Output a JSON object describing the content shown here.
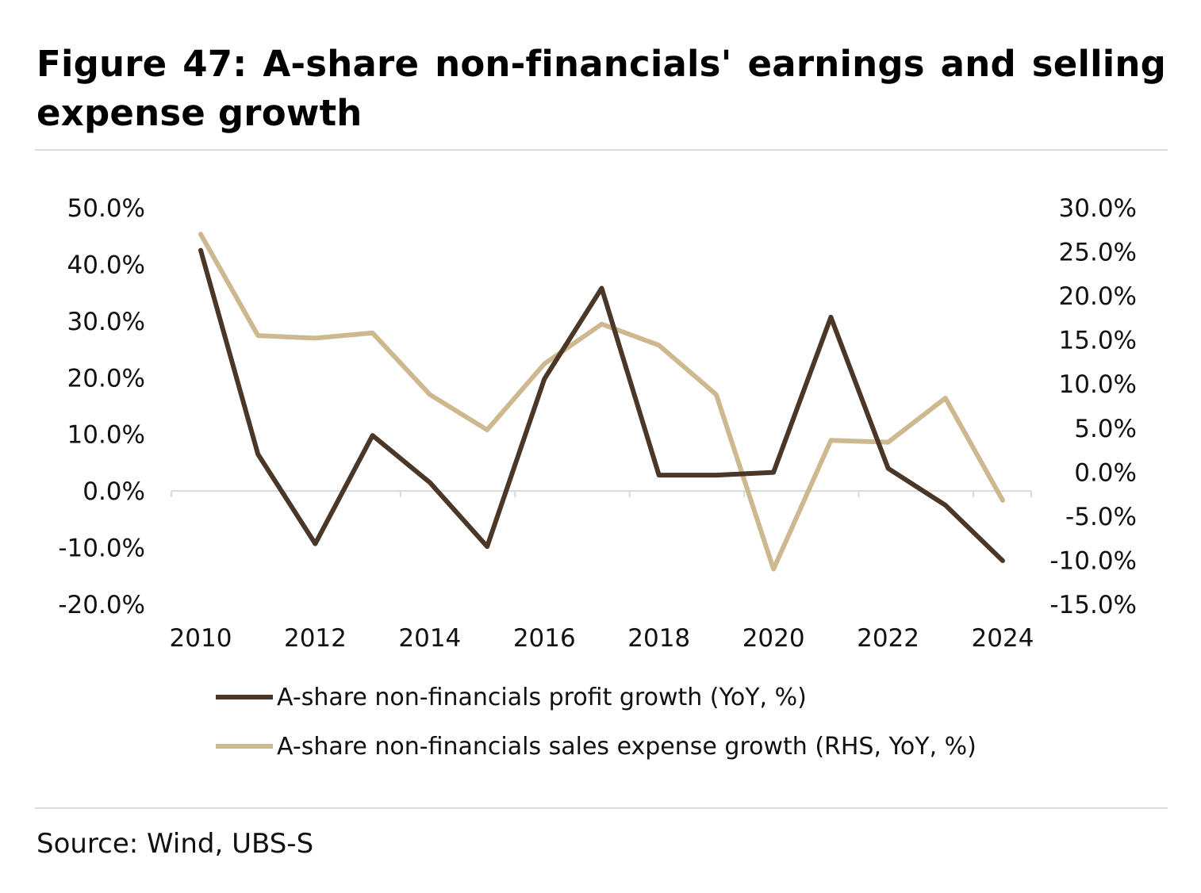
{
  "header": {
    "title": "Figure 47: A-share non-financials' earnings and selling expense growth"
  },
  "footer": {
    "source": "Source: Wind, UBS-S"
  },
  "colors": {
    "profit": "#4a3728",
    "expense": "#cdb88f",
    "axis": "#d9d9d9"
  },
  "chart_data": {
    "type": "line",
    "title": "Figure 47: A-share non-financials' earnings and selling expense growth",
    "x": [
      2010,
      2011,
      2012,
      2013,
      2014,
      2015,
      2016,
      2017,
      2018,
      2019,
      2020,
      2021,
      2022,
      2023,
      2024
    ],
    "x_tick_labels": [
      "2010",
      "2012",
      "2014",
      "2016",
      "2018",
      "2020",
      "2022",
      "2024"
    ],
    "y_left_ticks": [
      "50.0%",
      "40.0%",
      "30.0%",
      "20.0%",
      "10.0%",
      "0.0%",
      "-10.0%",
      "-20.0%"
    ],
    "y_right_ticks": [
      "30.0%",
      "25.0%",
      "20.0%",
      "15.0%",
      "10.0%",
      "5.0%",
      "0.0%",
      "-5.0%",
      "-10.0%",
      "-15.0%"
    ],
    "ylim_left": [
      -20,
      50
    ],
    "ylim_right": [
      -15,
      30
    ],
    "series": [
      {
        "name": "A-share non-financials profit growth (YoY, %)",
        "axis": "left",
        "values": [
          42.5,
          6.5,
          -9.3,
          9.8,
          1.5,
          -9.8,
          19.8,
          35.8,
          2.8,
          2.8,
          3.3,
          30.7,
          4.0,
          -2.5,
          -12.3
        ]
      },
      {
        "name": "A-share non-financials sales expense growth (RHS, YoY, %)",
        "axis": "right",
        "values": [
          27.0,
          15.5,
          15.2,
          15.8,
          8.8,
          4.8,
          12.3,
          16.8,
          14.4,
          8.8,
          -11.0,
          3.6,
          3.4,
          8.4,
          -3.2
        ]
      }
    ]
  }
}
